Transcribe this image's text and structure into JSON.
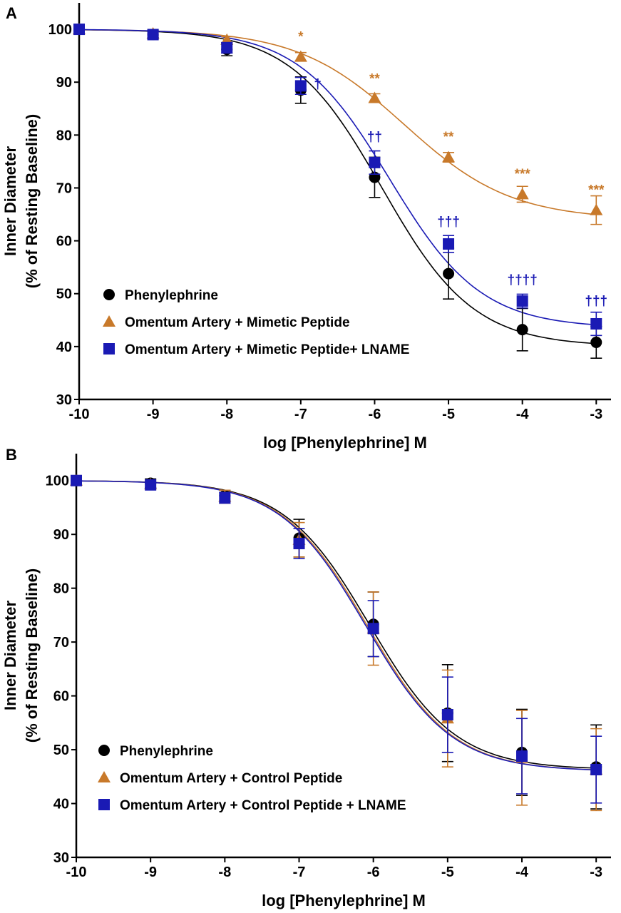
{
  "chart_data": [
    {
      "panel": "A",
      "type": "scatter",
      "xlabel": "log [Phenylephrine] M",
      "ylabel_line1": "Inner Diameter",
      "ylabel_line2": "(% of Resting Baseline)",
      "xlim": [
        -10,
        -2.8
      ],
      "ylim": [
        30,
        105
      ],
      "xticks": [
        -10,
        -9,
        -8,
        -7,
        -6,
        -5,
        -4,
        -3
      ],
      "yticks": [
        30,
        40,
        50,
        60,
        70,
        80,
        90,
        100
      ],
      "legend_position": "bottom-left",
      "series": [
        {
          "name": "Phenylephrine",
          "color": "#000000",
          "marker": "circle",
          "curve": {
            "top": 100,
            "bottom": 40,
            "logEC50": -5.9,
            "hill": 0.7
          },
          "points": [
            {
              "x": -10,
              "y": 100,
              "err": 0.5
            },
            {
              "x": -9,
              "y": 99,
              "err": 0.8
            },
            {
              "x": -8,
              "y": 96.2,
              "err": 1.2
            },
            {
              "x": -7,
              "y": 88.5,
              "err": 2.5
            },
            {
              "x": -6,
              "y": 72,
              "err": 3.8
            },
            {
              "x": -5,
              "y": 53.8,
              "err": 4.8
            },
            {
              "x": -4,
              "y": 43.2,
              "err": 4
            },
            {
              "x": -3,
              "y": 40.8,
              "err": 3
            }
          ]
        },
        {
          "name": "Omentum Artery + Mimetic Peptide",
          "color": "#c8792a",
          "marker": "triangle",
          "curve": {
            "top": 100,
            "bottom": 64,
            "logEC50": -5.6,
            "hill": 0.6
          },
          "points": [
            {
              "x": -10,
              "y": 100,
              "err": 0.3
            },
            {
              "x": -9,
              "y": 99.2,
              "err": 0.4
            },
            {
              "x": -8,
              "y": 98,
              "err": 0.6
            },
            {
              "x": -7,
              "y": 94.8,
              "err": 0.8
            },
            {
              "x": -6,
              "y": 87,
              "err": 0.8
            },
            {
              "x": -5,
              "y": 75.8,
              "err": 0.9
            },
            {
              "x": -4,
              "y": 68.8,
              "err": 1.5
            },
            {
              "x": -3,
              "y": 65.8,
              "err": 2.7
            }
          ]
        },
        {
          "name": "Omentum Artery + Mimetic Peptide+ LNAME",
          "color": "#1a1ab4",
          "marker": "square",
          "curve": {
            "top": 100,
            "bottom": 43.5,
            "logEC50": -5.8,
            "hill": 0.7
          },
          "points": [
            {
              "x": -10,
              "y": 100,
              "err": 0.3
            },
            {
              "x": -9,
              "y": 99,
              "err": 0.6
            },
            {
              "x": -8,
              "y": 96.5,
              "err": 1
            },
            {
              "x": -7,
              "y": 89.3,
              "err": 1.6
            },
            {
              "x": -6,
              "y": 74.8,
              "err": 2.2
            },
            {
              "x": -5,
              "y": 59.4,
              "err": 1.6
            },
            {
              "x": -4,
              "y": 48.6,
              "err": 1.3
            },
            {
              "x": -3,
              "y": 44.3,
              "err": 2.2
            }
          ]
        }
      ],
      "annotations": [
        {
          "text": "*",
          "x": -7,
          "y": 97.8,
          "color": "#c8792a"
        },
        {
          "text": "**",
          "x": -6,
          "y": 89.8,
          "color": "#c8792a"
        },
        {
          "text": "**",
          "x": -5,
          "y": 78.8,
          "color": "#c8792a"
        },
        {
          "text": "***",
          "x": -4,
          "y": 71.8,
          "color": "#c8792a"
        },
        {
          "text": "***",
          "x": -3,
          "y": 68.8,
          "color": "#c8792a"
        },
        {
          "text": "†",
          "x": -6.77,
          "y": 88.8,
          "color": "#1a1ab4"
        },
        {
          "text": "††",
          "x": -6,
          "y": 78.8,
          "color": "#1a1ab4"
        },
        {
          "text": "†††",
          "x": -5,
          "y": 62.8,
          "color": "#1a1ab4"
        },
        {
          "text": "††††",
          "x": -4,
          "y": 51.8,
          "color": "#1a1ab4"
        },
        {
          "text": "†††",
          "x": -3,
          "y": 47.8,
          "color": "#1a1ab4"
        }
      ]
    },
    {
      "panel": "B",
      "type": "scatter",
      "xlabel": "log [Phenylephrine] M",
      "ylabel_line1": "Inner Diameter",
      "ylabel_line2": "(% of Resting Baseline)",
      "xlim": [
        -10,
        -2.8
      ],
      "ylim": [
        30,
        105
      ],
      "xticks": [
        -10,
        -9,
        -8,
        -7,
        -6,
        -5,
        -4,
        -3
      ],
      "yticks": [
        30,
        40,
        50,
        60,
        70,
        80,
        90,
        100
      ],
      "legend_position": "bottom-left",
      "series": [
        {
          "name": "Phenylephrine",
          "color": "#000000",
          "marker": "circle",
          "curve": {
            "top": 100,
            "bottom": 46.3,
            "logEC50": -6.05,
            "hill": 0.75
          },
          "points": [
            {
              "x": -10,
              "y": 100,
              "err": 0.5
            },
            {
              "x": -9,
              "y": 99.5,
              "err": 0.8
            },
            {
              "x": -8,
              "y": 97.2,
              "err": 1
            },
            {
              "x": -7,
              "y": 89.3,
              "err": 3.5
            },
            {
              "x": -6,
              "y": 73.3,
              "err": 6
            },
            {
              "x": -5,
              "y": 56.8,
              "err": 9
            },
            {
              "x": -4,
              "y": 49.5,
              "err": 8
            },
            {
              "x": -3,
              "y": 46.8,
              "err": 7.8
            }
          ]
        },
        {
          "name": "Omentum Artery + Control Peptide",
          "color": "#c8792a",
          "marker": "triangle",
          "curve": {
            "top": 100,
            "bottom": 46,
            "logEC50": -6.08,
            "hill": 0.75
          },
          "points": [
            {
              "x": -10,
              "y": 100,
              "err": 0.5
            },
            {
              "x": -9,
              "y": 99.3,
              "err": 0.8
            },
            {
              "x": -8,
              "y": 97,
              "err": 1.2
            },
            {
              "x": -7,
              "y": 89,
              "err": 3.2
            },
            {
              "x": -6,
              "y": 72.5,
              "err": 6.8
            },
            {
              "x": -5,
              "y": 55.8,
              "err": 9
            },
            {
              "x": -4,
              "y": 48.5,
              "err": 8.8
            },
            {
              "x": -3,
              "y": 46.3,
              "err": 7.6
            }
          ]
        },
        {
          "name": "Omentum Artery + Control Peptide + LNAME",
          "color": "#1a1ab4",
          "marker": "square",
          "curve": {
            "top": 100,
            "bottom": 46,
            "logEC50": -6.1,
            "hill": 0.75
          },
          "points": [
            {
              "x": -10,
              "y": 100,
              "err": 0.5
            },
            {
              "x": -9,
              "y": 99.2,
              "err": 0.6
            },
            {
              "x": -8,
              "y": 96.8,
              "err": 1
            },
            {
              "x": -7,
              "y": 88.3,
              "err": 2.8
            },
            {
              "x": -6,
              "y": 72.5,
              "err": 5.2
            },
            {
              "x": -5,
              "y": 56.5,
              "err": 7
            },
            {
              "x": -4,
              "y": 48.8,
              "err": 7
            },
            {
              "x": -3,
              "y": 46.3,
              "err": 6.2
            }
          ]
        }
      ],
      "annotations": []
    }
  ]
}
